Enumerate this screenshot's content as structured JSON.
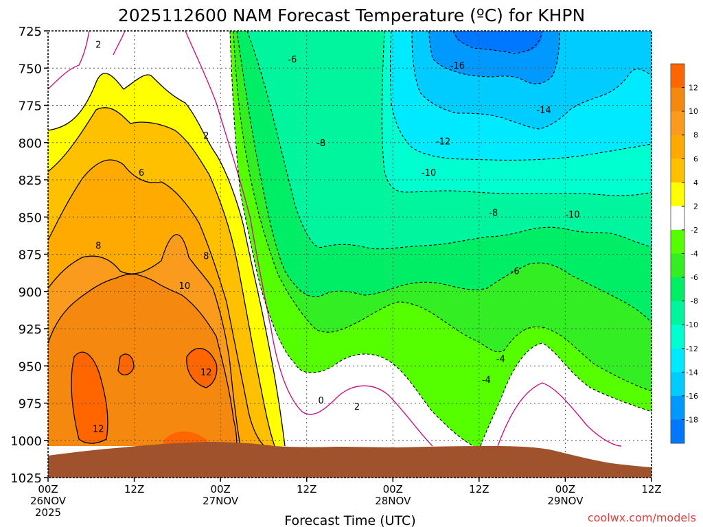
{
  "page": {
    "title": "2025112600 NAM Forecast Temperature (ºC) for KHPN",
    "credit": "coolwx.com/models"
  },
  "colors": {
    "ground": "#a0522d",
    "contour_line": "#000000",
    "zero_line": "#c71585",
    "grid": "#555555",
    "credit": "#e23c3c"
  },
  "chart_data": {
    "type": "heatmap",
    "title": "2025112600 NAM Forecast Temperature (ºC) for KHPN",
    "xlabel": "Forecast Time (UTC)",
    "ylabel": "",
    "x_range_hours": [
      0,
      84
    ],
    "y_range_hpa": [
      725,
      1025
    ],
    "y_inverted": true,
    "y_ticks": [
      "725",
      "750",
      "775",
      "800",
      "825",
      "850",
      "875",
      "900",
      "925",
      "950",
      "975",
      "1000",
      "1025"
    ],
    "x_ticks": [
      {
        "hour": 0,
        "l1": "00Z",
        "l2": "26NOV",
        "l3": "2025"
      },
      {
        "hour": 12,
        "l1": "12Z",
        "l2": "",
        "l3": ""
      },
      {
        "hour": 24,
        "l1": "00Z",
        "l2": "27NOV",
        "l3": ""
      },
      {
        "hour": 36,
        "l1": "12Z",
        "l2": "",
        "l3": ""
      },
      {
        "hour": 48,
        "l1": "00Z",
        "l2": "28NOV",
        "l3": ""
      },
      {
        "hour": 60,
        "l1": "12Z",
        "l2": "",
        "l3": ""
      },
      {
        "hour": 72,
        "l1": "00Z",
        "l2": "29NOV",
        "l3": ""
      },
      {
        "hour": 84,
        "l1": "12Z",
        "l2": "",
        "l3": ""
      }
    ],
    "grid": true,
    "colorbar": {
      "placement": "right",
      "bins": [
        {
          "range": [
            12,
            14
          ],
          "color": "#ff6600"
        },
        {
          "range": [
            10,
            12
          ],
          "color": "#f5880f"
        },
        {
          "range": [
            8,
            10
          ],
          "color": "#fa9b1e"
        },
        {
          "range": [
            6,
            8
          ],
          "color": "#ffaa00"
        },
        {
          "range": [
            4,
            6
          ],
          "color": "#ffc000"
        },
        {
          "range": [
            2,
            4
          ],
          "color": "#ffff00"
        },
        {
          "range": [
            -2,
            2
          ],
          "color": "#ffffff"
        },
        {
          "range": [
            -4,
            -2
          ],
          "color": "#55ff00"
        },
        {
          "range": [
            -6,
            -4
          ],
          "color": "#33ee22"
        },
        {
          "range": [
            -8,
            -6
          ],
          "color": "#00ee66"
        },
        {
          "range": [
            -10,
            -8
          ],
          "color": "#00f59e"
        },
        {
          "range": [
            -12,
            -10
          ],
          "color": "#00ffd0"
        },
        {
          "range": [
            -14,
            -12
          ],
          "color": "#00eaff"
        },
        {
          "range": [
            -16,
            -14
          ],
          "color": "#00ccff"
        },
        {
          "range": [
            -18,
            -16
          ],
          "color": "#0099ff"
        },
        {
          "range": [
            -20,
            -18
          ],
          "color": "#0077ff"
        }
      ],
      "tick_labels": [
        "12",
        "10",
        "8",
        "6",
        "4",
        "2",
        "-2",
        "-4",
        "-6",
        "-8",
        "-10",
        "-12",
        "-14",
        "-16",
        "-18"
      ]
    },
    "contour_labels": [
      {
        "text": "2",
        "hour": 7,
        "hpa": 734
      },
      {
        "text": "2",
        "hour": 22,
        "hpa": 795
      },
      {
        "text": "6",
        "hour": 13,
        "hpa": 820
      },
      {
        "text": "8",
        "hour": 7,
        "hpa": 869
      },
      {
        "text": "8",
        "hour": 22,
        "hpa": 876
      },
      {
        "text": "10",
        "hour": 19,
        "hpa": 896
      },
      {
        "text": "12",
        "hour": 22,
        "hpa": 954
      },
      {
        "text": "12",
        "hour": 7,
        "hpa": 992
      },
      {
        "text": "-6",
        "hour": 34,
        "hpa": 744
      },
      {
        "text": "-8",
        "hour": 38,
        "hpa": 800
      },
      {
        "text": "-16",
        "hour": 57,
        "hpa": 748
      },
      {
        "text": "-14",
        "hour": 69,
        "hpa": 778
      },
      {
        "text": "-12",
        "hour": 55,
        "hpa": 799
      },
      {
        "text": "-10",
        "hour": 53,
        "hpa": 820
      },
      {
        "text": "-8",
        "hour": 62,
        "hpa": 847
      },
      {
        "text": "-10",
        "hour": 73,
        "hpa": 848
      },
      {
        "text": "-6",
        "hour": 65,
        "hpa": 886
      },
      {
        "text": "-4",
        "hour": 63,
        "hpa": 945
      },
      {
        "text": "-4",
        "hour": 61,
        "hpa": 959
      },
      {
        "text": "0",
        "hour": 38,
        "hpa": 973
      },
      {
        "text": "2",
        "hour": 43,
        "hpa": 977
      }
    ]
  }
}
